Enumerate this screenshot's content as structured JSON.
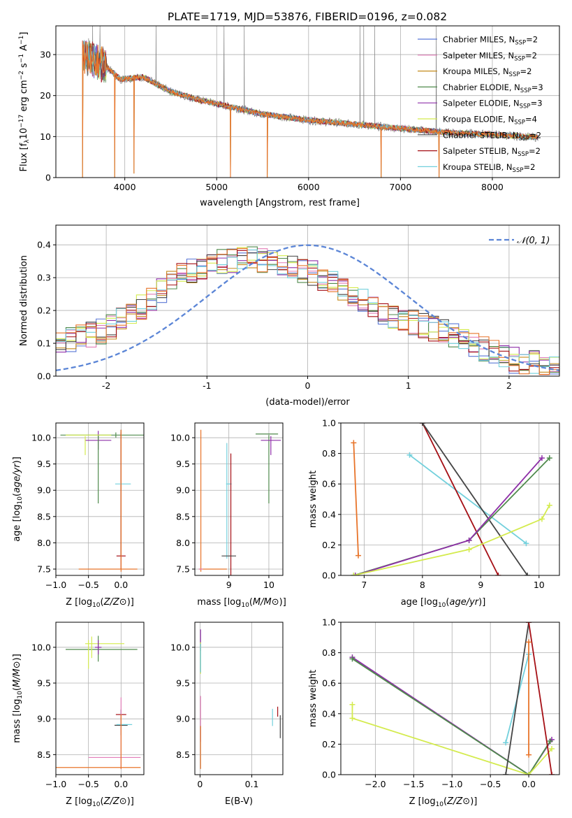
{
  "figure_title": "PLATE=1719, MJD=53876, FIBERID=0196, z=0.082",
  "legend": [
    {
      "label": "Chabrier MILES, N",
      "sub": "SSP",
      "tail": "=2",
      "color": "#5b78d6"
    },
    {
      "label": "Salpeter MILES, N",
      "sub": "SSP",
      "tail": "=2",
      "color": "#e27db8"
    },
    {
      "label": "Kroupa MILES, N",
      "sub": "SSP",
      "tail": "=2",
      "color": "#c48a1b"
    },
    {
      "label": "Chabrier ELODIE, N",
      "sub": "SSP",
      "tail": "=3",
      "color": "#4f8a4c"
    },
    {
      "label": "Salpeter ELODIE, N",
      "sub": "SSP",
      "tail": "=3",
      "color": "#8e2fa8"
    },
    {
      "label": "Kroupa ELODIE, N",
      "sub": "SSP",
      "tail": "=4",
      "color": "#d4eb4e"
    },
    {
      "label": "Chabrier STELIB, N",
      "sub": "SSP",
      "tail": "=2",
      "color": "#444444"
    },
    {
      "label": "Salpeter STELIB, N",
      "sub": "SSP",
      "tail": "=2",
      "color": "#a50f15"
    },
    {
      "label": "Kroupa STELIB, N",
      "sub": "SSP",
      "tail": "=2",
      "color": "#72d0dc"
    }
  ],
  "chart_data": [
    {
      "id": "spectrum",
      "type": "line",
      "xlabel": "wavelength [Angstrom, rest frame]",
      "ylabel_parts": [
        "Flux [f",
        "λ",
        "10",
        "−17",
        " erg cm",
        "−2",
        " s",
        "−1",
        " A",
        "−1",
        "]"
      ],
      "xlim": [
        3250,
        8730
      ],
      "ylim": [
        0,
        37
      ],
      "xticks": [
        4000,
        5000,
        6000,
        7000,
        8000
      ],
      "yticks": [
        0,
        10,
        20,
        30
      ],
      "data_color": "#808080",
      "model_color": "#e8742a",
      "continuum": [
        [
          3540,
          30
        ],
        [
          3800,
          27
        ],
        [
          3950,
          24
        ],
        [
          4200,
          24.5
        ],
        [
          4500,
          21
        ],
        [
          4800,
          19
        ],
        [
          5000,
          18
        ],
        [
          5500,
          15.5
        ],
        [
          6000,
          14
        ],
        [
          6500,
          13
        ],
        [
          7000,
          12
        ],
        [
          7500,
          11
        ],
        [
          8000,
          10.5
        ],
        [
          8500,
          9.8
        ]
      ],
      "dips": [
        [
          3540,
          0
        ],
        [
          3890,
          0
        ],
        [
          4100,
          1
        ],
        [
          5150,
          0
        ],
        [
          5550,
          0
        ],
        [
          6790,
          0
        ],
        [
          7420,
          0
        ]
      ],
      "peaks": [
        [
          3650,
          37
        ],
        [
          3730,
          37
        ],
        [
          4340,
          37
        ],
        [
          5080,
          37
        ],
        [
          5300,
          37
        ],
        [
          6560,
          37
        ],
        [
          6600,
          37
        ],
        [
          6720,
          37
        ],
        [
          7390,
          37
        ]
      ]
    },
    {
      "id": "residual-hist",
      "type": "histogram",
      "xlabel": "(data-model)/error",
      "ylabel": "Normed distribution",
      "xlim": [
        -2.5,
        2.5
      ],
      "ylim": [
        0,
        0.46
      ],
      "xticks": [
        -2,
        -1,
        0,
        1,
        2
      ],
      "yticks": [
        0.0,
        0.1,
        0.2,
        0.3,
        0.4
      ],
      "reference_label": "N(0,1)",
      "reference_color": "#5b85d6",
      "bin_width": 0.1,
      "envelope": [
        [
          -2.5,
          0.1
        ],
        [
          -2.0,
          0.14
        ],
        [
          -1.7,
          0.2
        ],
        [
          -1.3,
          0.3
        ],
        [
          -1.0,
          0.34
        ],
        [
          -0.6,
          0.36
        ],
        [
          0.0,
          0.32
        ],
        [
          0.3,
          0.28
        ],
        [
          0.7,
          0.2
        ],
        [
          1.0,
          0.17
        ],
        [
          1.5,
          0.12
        ],
        [
          2.0,
          0.05
        ],
        [
          2.5,
          0.03
        ]
      ]
    },
    {
      "id": "age-vs-z",
      "type": "errorbar",
      "xlabel": "Z [log10(Z/Z⊙)]",
      "ylabel": "age  [log10(age/yr)]",
      "xlim": [
        -1.0,
        0.35
      ],
      "ylim": [
        7.38,
        10.28
      ],
      "xticks": [
        -1.0,
        -0.5,
        0.0
      ],
      "xticklabels": [
        "−1.0",
        "−0.5",
        "0.0"
      ],
      "yticks": [
        7.5,
        8.0,
        8.5,
        9.0,
        9.5,
        10.0
      ],
      "points": [
        {
          "x": -0.08,
          "y": 10.05,
          "xerr": 0.85,
          "yerr": 0.05,
          "color": "#4f8a4c"
        },
        {
          "x": -0.35,
          "y": 9.95,
          "xerr": 0.2,
          "yerr": 0.18,
          "color": "#8e2fa8"
        },
        {
          "x": -0.35,
          "y": 9.4,
          "xerr": 0.0,
          "yerr": 0.65,
          "color": "#4f8a4c"
        },
        {
          "x": -0.5,
          "y": 10.05,
          "xerr": 0.35,
          "yerr": 0.0,
          "color": "#d4eb4e"
        },
        {
          "x": -0.55,
          "y": 9.85,
          "xerr": 0.0,
          "yerr": 0.18,
          "color": "#d4eb4e"
        },
        {
          "x": 0.0,
          "y": 8.95,
          "xerr": 0.0,
          "yerr": 1.2,
          "color": "#444444"
        },
        {
          "x": 0.0,
          "y": 7.75,
          "xerr": 0.07,
          "yerr": 0.0,
          "color": "#a50f15"
        },
        {
          "x": 0.0,
          "y": 8.8,
          "xerr": 0.0,
          "yerr": 1.3,
          "color": "#a50f15"
        },
        {
          "x": 0.03,
          "y": 9.12,
          "xerr": 0.12,
          "yerr": 0.0,
          "color": "#72d0dc"
        },
        {
          "x": -0.2,
          "y": 7.5,
          "xerr": 0.45,
          "yerr": 0.0,
          "color": "#e8742a"
        },
        {
          "x": 0.0,
          "y": 8.8,
          "xerr": 0.0,
          "yerr": 1.35,
          "color": "#e8742a"
        }
      ]
    },
    {
      "id": "age-vs-mass",
      "type": "errorbar",
      "xlabel": "mass [log10(M/M⊙)]",
      "xlim": [
        8.15,
        10.35
      ],
      "ylim": [
        7.38,
        10.28
      ],
      "xticks": [
        9,
        10
      ],
      "yticks": [
        7.5,
        8.0,
        8.5,
        9.0,
        9.5,
        10.0
      ],
      "points": [
        {
          "x": 8.3,
          "y": 8.8,
          "xerr": 0.0,
          "yerr": 1.35,
          "color": "#e8742a"
        },
        {
          "x": 8.6,
          "y": 7.5,
          "xerr": 0.35,
          "yerr": 0.0,
          "color": "#e8742a"
        },
        {
          "x": 8.3,
          "y": 7.5,
          "xerr": 0.05,
          "yerr": 0.0,
          "color": "#e27db8"
        },
        {
          "x": 8.95,
          "y": 8.8,
          "xerr": 0.0,
          "yerr": 1.1,
          "color": "#72d0dc"
        },
        {
          "x": 9.0,
          "y": 9.12,
          "xerr": 0.07,
          "yerr": 0.0,
          "color": "#72d0dc"
        },
        {
          "x": 9.05,
          "y": 8.4,
          "xerr": 0.0,
          "yerr": 1.3,
          "color": "#a50f15"
        },
        {
          "x": 9.0,
          "y": 7.75,
          "xerr": 0.18,
          "yerr": 0.0,
          "color": "#444444"
        },
        {
          "x": 9.95,
          "y": 10.07,
          "xerr": 0.28,
          "yerr": 0.0,
          "color": "#4f8a4c"
        },
        {
          "x": 10.0,
          "y": 9.4,
          "xerr": 0.0,
          "yerr": 0.65,
          "color": "#4f8a4c"
        },
        {
          "x": 10.05,
          "y": 9.95,
          "xerr": 0.25,
          "yerr": 0.0,
          "color": "#8e2fa8"
        },
        {
          "x": 10.05,
          "y": 9.85,
          "xerr": 0.0,
          "yerr": 0.18,
          "color": "#8e2fa8"
        }
      ]
    },
    {
      "id": "weight-vs-age",
      "type": "line",
      "xlabel": "age  [log10(age/yr)]",
      "ylabel": "mass weight",
      "xlim": [
        6.6,
        10.35
      ],
      "ylim": [
        0,
        1
      ],
      "xticks": [
        7,
        8,
        9,
        10
      ],
      "yticks": [
        0.0,
        0.2,
        0.4,
        0.6,
        0.8,
        1.0
      ],
      "series": [
        {
          "color": "#e8742a",
          "points": [
            [
              6.82,
              0.87
            ],
            [
              6.9,
              0.13
            ]
          ]
        },
        {
          "color": "#72d0dc",
          "points": [
            [
              7.78,
              0.79
            ],
            [
              9.78,
              0.21
            ]
          ]
        },
        {
          "color": "#a50f15",
          "points": [
            [
              8.0,
              1.0
            ],
            [
              9.3,
              0.0
            ]
          ]
        },
        {
          "color": "#444444",
          "points": [
            [
              8.0,
              1.0
            ],
            [
              9.8,
              0.0
            ]
          ]
        },
        {
          "color": "#4f8a4c",
          "points": [
            [
              6.82,
              0.0
            ],
            [
              8.8,
              0.23
            ],
            [
              10.18,
              0.77
            ]
          ]
        },
        {
          "color": "#8e2fa8",
          "points": [
            [
              6.85,
              0.0
            ],
            [
              8.8,
              0.23
            ],
            [
              10.05,
              0.77
            ]
          ]
        },
        {
          "color": "#d4eb4e",
          "points": [
            [
              6.82,
              0.0
            ],
            [
              8.8,
              0.17
            ],
            [
              10.05,
              0.37
            ],
            [
              10.18,
              0.46
            ]
          ]
        }
      ]
    },
    {
      "id": "mass-vs-z",
      "type": "errorbar",
      "xlabel": "Z [log10(Z/Z⊙)]",
      "ylabel": "mass [log10(M/M⊙)]",
      "xlim": [
        -1.0,
        0.35
      ],
      "ylim": [
        8.22,
        10.35
      ],
      "xticks": [
        -1.0,
        -0.5,
        0.0
      ],
      "xticklabels": [
        "−1.0",
        "−0.5",
        "0.0"
      ],
      "yticks": [
        8.5,
        9.0,
        9.5,
        10.0
      ],
      "points": [
        {
          "x": -0.3,
          "y": 9.97,
          "xerr": 0.55,
          "yerr": 0.0,
          "color": "#4f8a4c"
        },
        {
          "x": -0.25,
          "y": 10.05,
          "xerr": 0.3,
          "yerr": 0.0,
          "color": "#d4eb4e"
        },
        {
          "x": -0.35,
          "y": 9.98,
          "xerr": 0.0,
          "yerr": 0.18,
          "color": "#4f8a4c"
        },
        {
          "x": -0.35,
          "y": 10.0,
          "xerr": 0.05,
          "yerr": 0.1,
          "color": "#8e2fa8"
        },
        {
          "x": -0.5,
          "y": 9.9,
          "xerr": 0.0,
          "yerr": 0.2,
          "color": "#d4eb4e"
        },
        {
          "x": -0.45,
          "y": 10.0,
          "xerr": 0.0,
          "yerr": 0.15,
          "color": "#d4eb4e"
        },
        {
          "x": 0.0,
          "y": 9.06,
          "xerr": 0.08,
          "yerr": 0.0,
          "color": "#a50f15"
        },
        {
          "x": 0.0,
          "y": 8.91,
          "xerr": 0.1,
          "yerr": 0.0,
          "color": "#444444"
        },
        {
          "x": 0.05,
          "y": 8.92,
          "xerr": 0.12,
          "yerr": 0.0,
          "color": "#72d0dc"
        },
        {
          "x": 0.0,
          "y": 8.95,
          "xerr": 0.0,
          "yerr": 0.18,
          "color": "#444444"
        },
        {
          "x": -0.1,
          "y": 8.46,
          "xerr": 0.4,
          "yerr": 0.0,
          "color": "#e27db8"
        },
        {
          "x": 0.0,
          "y": 8.8,
          "xerr": 0.0,
          "yerr": 0.5,
          "color": "#e27db8"
        },
        {
          "x": -0.35,
          "y": 8.32,
          "xerr": 0.65,
          "yerr": 0.0,
          "color": "#e8742a"
        },
        {
          "x": 0.0,
          "y": 8.68,
          "xerr": 0.0,
          "yerr": 0.38,
          "color": "#e8742a"
        }
      ]
    },
    {
      "id": "mass-vs-ebv",
      "type": "errorbar",
      "xlabel": "E(B-V)",
      "xlim": [
        -0.01,
        0.16
      ],
      "ylim": [
        8.22,
        10.35
      ],
      "xticks": [
        0.0,
        0.1
      ],
      "yticks": [
        8.5,
        9.0,
        9.5,
        10.0
      ],
      "points": [
        {
          "x": 0.001,
          "y": 10.1,
          "xerr": 0.0,
          "yerr": 0.15,
          "color": "#8e2fa8"
        },
        {
          "x": 0.001,
          "y": 9.85,
          "xerr": 0.0,
          "yerr": 0.22,
          "color": "#d4eb4e"
        },
        {
          "x": 0.001,
          "y": 9.85,
          "xerr": 0.0,
          "yerr": 0.2,
          "color": "#72d0dc"
        },
        {
          "x": 0.001,
          "y": 9.0,
          "xerr": 0.0,
          "yerr": 0.32,
          "color": "#e27db8"
        },
        {
          "x": 0.001,
          "y": 8.6,
          "xerr": 0.0,
          "yerr": 0.3,
          "color": "#e8742a"
        },
        {
          "x": 0.14,
          "y": 9.02,
          "xerr": 0.0,
          "yerr": 0.12,
          "color": "#72d0dc"
        },
        {
          "x": 0.15,
          "y": 9.1,
          "xerr": 0.0,
          "yerr": 0.07,
          "color": "#a50f15"
        },
        {
          "x": 0.155,
          "y": 8.89,
          "xerr": 0.0,
          "yerr": 0.16,
          "color": "#444444"
        }
      ]
    },
    {
      "id": "weight-vs-z",
      "type": "line",
      "xlabel": "Z [log10(Z/Z⊙)]",
      "ylabel": "mass weight",
      "xlim": [
        -2.45,
        0.4
      ],
      "ylim": [
        0,
        1
      ],
      "xticks": [
        -2.0,
        -1.5,
        -1.0,
        -0.5,
        0.0
      ],
      "xticklabels": [
        "−2.0",
        "−1.5",
        "−1.0",
        "−0.5",
        "0.0"
      ],
      "yticks": [
        0.0,
        0.2,
        0.4,
        0.6,
        0.8,
        1.0
      ],
      "series": [
        {
          "color": "#8e2fa8",
          "points": [
            [
              -2.3,
              0.77
            ],
            [
              0.0,
              0.0
            ],
            [
              0.3,
              0.23
            ]
          ]
        },
        {
          "color": "#4f8a4c",
          "points": [
            [
              -2.3,
              0.76
            ],
            [
              0.0,
              0.0
            ],
            [
              0.28,
              0.22
            ]
          ]
        },
        {
          "color": "#d4eb4e",
          "points": [
            [
              -2.3,
              0.46
            ],
            [
              -2.3,
              0.37
            ],
            [
              0.0,
              0.0
            ],
            [
              0.3,
              0.17
            ]
          ]
        },
        {
          "color": "#72d0dc",
          "points": [
            [
              -0.3,
              0.21
            ],
            [
              0.0,
              0.79
            ]
          ]
        },
        {
          "color": "#444444",
          "points": [
            [
              -0.3,
              0.0
            ],
            [
              0.0,
              1.0
            ]
          ]
        },
        {
          "color": "#a50f15",
          "points": [
            [
              0.0,
              1.0
            ],
            [
              0.3,
              0.0
            ]
          ]
        },
        {
          "color": "#e8742a",
          "points": [
            [
              0.0,
              0.87
            ],
            [
              0.0,
              0.13
            ]
          ]
        }
      ]
    }
  ]
}
